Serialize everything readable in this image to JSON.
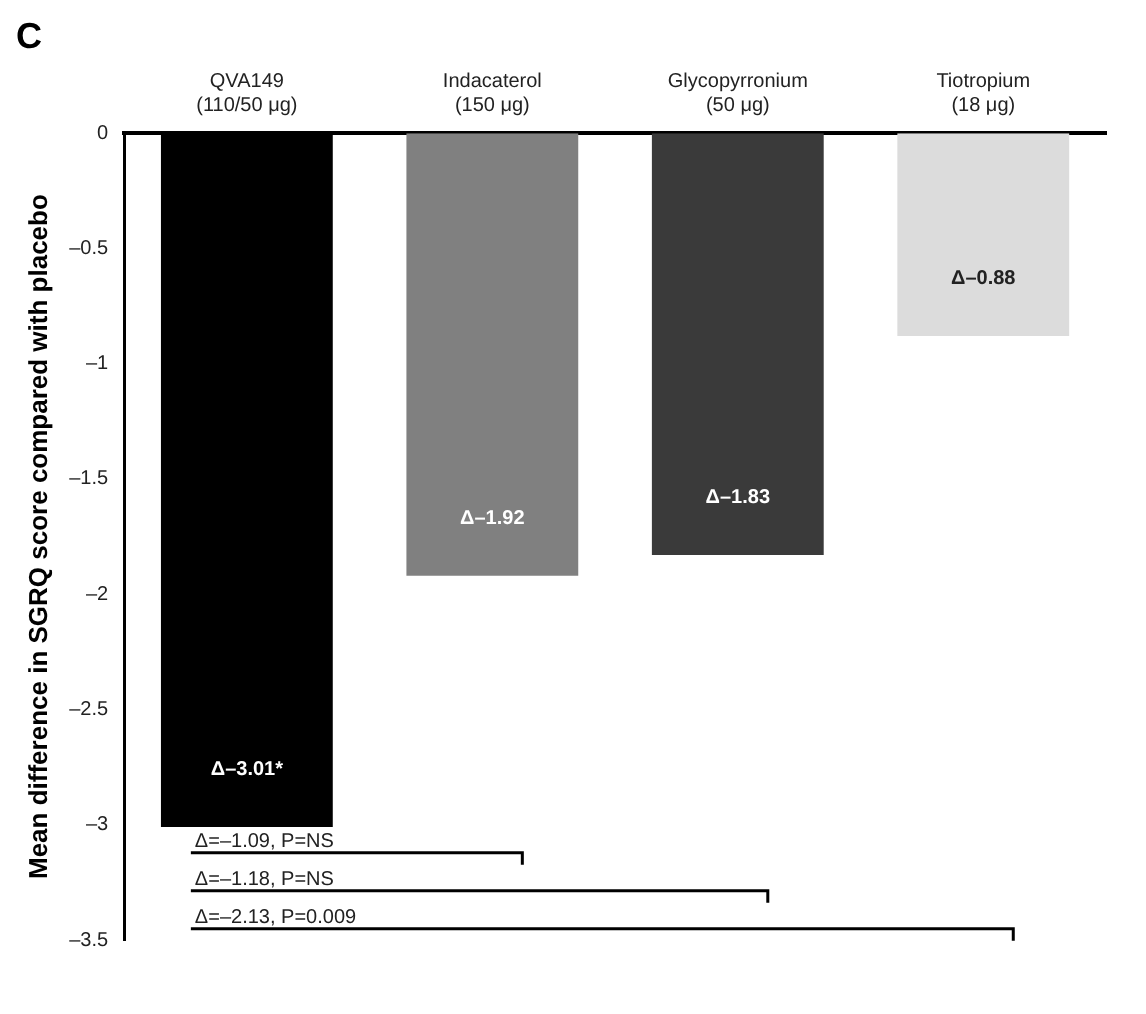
{
  "chart_data": {
    "type": "bar",
    "title": "C",
    "ylabel": "Mean difference in SGRQ score compared with placebo",
    "categories": [
      "QVA149 (110/50 μg)",
      "Indacaterol (150 μg)",
      "Glycopyrronium (50 μg)",
      "Tiotropium (18 μg)"
    ],
    "values": [
      -3.01,
      -1.92,
      -1.83,
      -0.88
    ],
    "colors": [
      "#000000",
      "#808080",
      "#3a3a3a",
      "#dcdcdc"
    ],
    "value_labels": [
      "Δ–3.01*",
      "Δ–1.92",
      "Δ–1.83",
      "Δ–0.88"
    ],
    "ylim": [
      -3.5,
      0
    ],
    "yticks": [
      0,
      {
        "value": -0.5,
        "label": "–0.5"
      },
      {
        "value": -1,
        "label": "–1"
      },
      {
        "value": -1.5,
        "label": "–1.5"
      },
      {
        "value": -2,
        "label": "–2"
      },
      {
        "value": -2.5,
        "label": "–2.5"
      },
      {
        "value": -3,
        "label": "–3"
      },
      {
        "value": -3.5,
        "label": "–3.5"
      }
    ],
    "annotations": [
      "Δ=–1.09, P=NS",
      "Δ=–1.18, P=NS",
      "Δ=–2.13, P=0.009"
    ],
    "grid": false,
    "legend": false
  }
}
